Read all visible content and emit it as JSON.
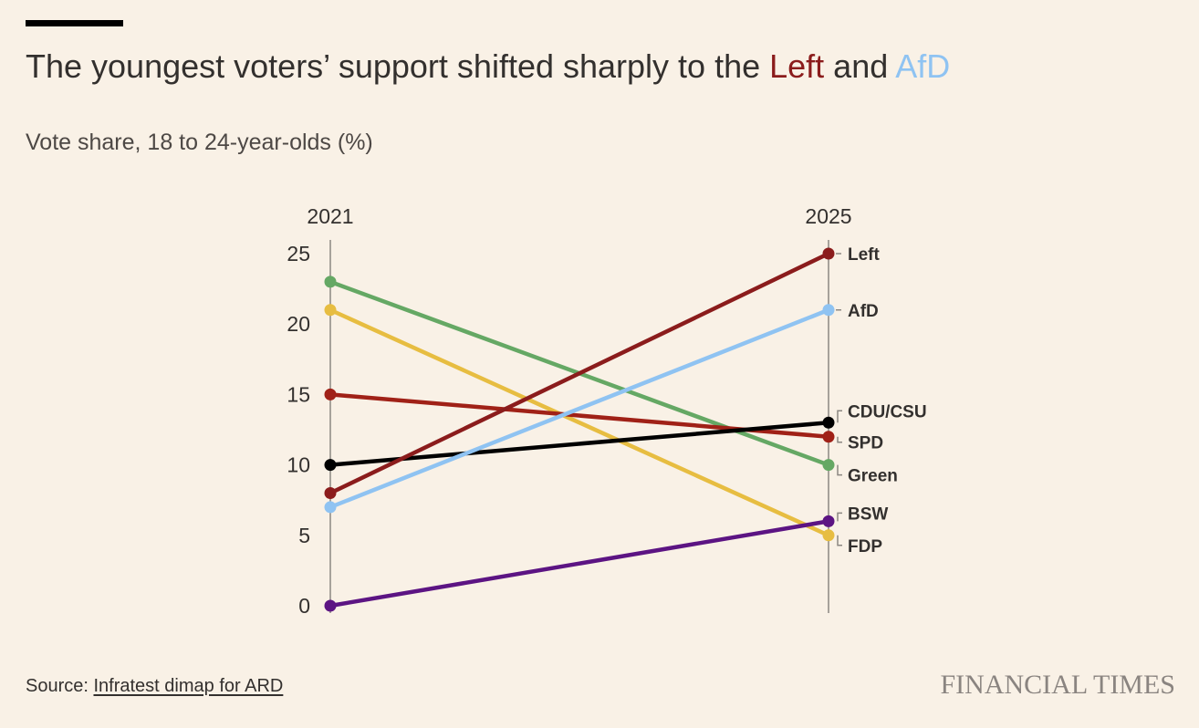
{
  "header": {
    "title_prefix": "The youngest voters’ support shifted sharply to the ",
    "title_left": "Left",
    "title_and": " and ",
    "title_afd": "AfD",
    "subtitle": "Vote share, 18 to 24-year-olds (%)"
  },
  "footer": {
    "source_label": "Source: ",
    "source_link": "Infratest dimap for ARD",
    "brand": "FINANCIAL TIMES"
  },
  "colors": {
    "background": "#f9f1e6",
    "left": "#8b1c1c",
    "afd": "#8fc3f2",
    "green": "#65a864",
    "fdp": "#e7bd41",
    "spd": "#a02117",
    "cdu_csu": "#000000",
    "bsw": "#5c1483"
  },
  "chart_data": {
    "type": "line",
    "subtype": "slope",
    "title": "The youngest voters’ support shifted sharply to the Left and AfD",
    "subtitle": "Vote share, 18 to 24-year-olds (%)",
    "x": [
      "2021",
      "2025"
    ],
    "y_ticks": [
      "0",
      "5",
      "10",
      "15",
      "20",
      "25"
    ],
    "ylim": [
      0,
      25
    ],
    "grid": false,
    "series": [
      {
        "name": "Green",
        "values": [
          23,
          10
        ],
        "color": "#65a864",
        "label_2021": "",
        "label_2025": "Green"
      },
      {
        "name": "FDP",
        "values": [
          21,
          5
        ],
        "color": "#e7bd41",
        "label_2025": "FDP"
      },
      {
        "name": "SPD",
        "values": [
          15,
          12
        ],
        "color": "#a02117",
        "label_2025": "SPD"
      },
      {
        "name": "CDU/CSU",
        "values": [
          10,
          13
        ],
        "color": "#000000",
        "label_2025": "CDU/CSU"
      },
      {
        "name": "BSW",
        "values": [
          0,
          6
        ],
        "color": "#5c1483",
        "label_2025": "BSW"
      },
      {
        "name": "AfD",
        "values": [
          7,
          21
        ],
        "color": "#8fc3f2",
        "label_2025": "AfD"
      },
      {
        "name": "Left",
        "values": [
          8,
          25
        ],
        "color": "#8b1c1c",
        "label_2025": "Left"
      }
    ]
  }
}
